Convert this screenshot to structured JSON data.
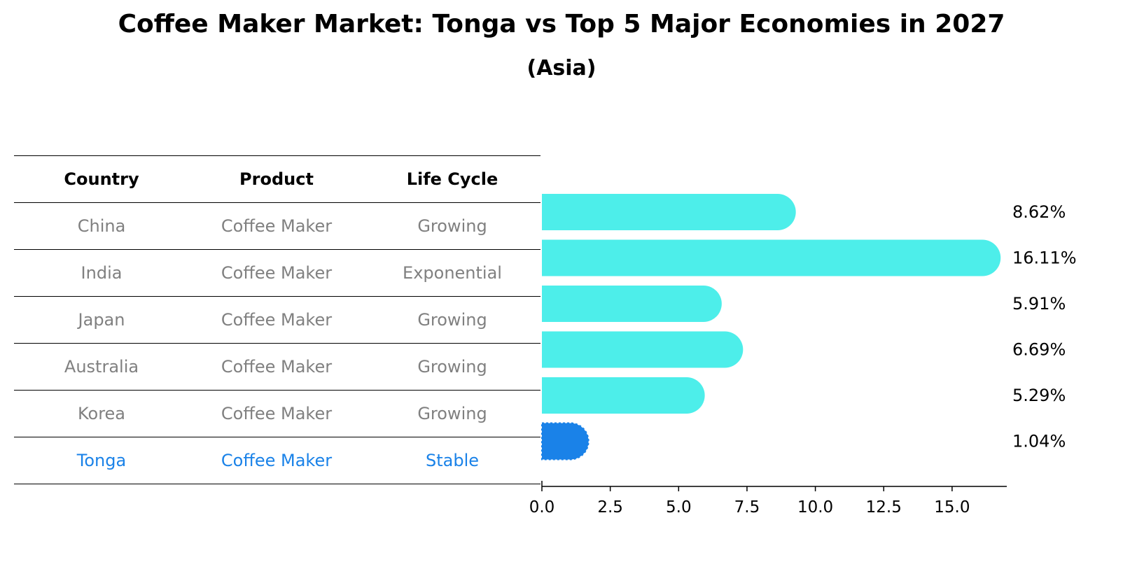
{
  "title": "Coffee Maker Market: Tonga vs Top 5 Major Economies in 2027",
  "subtitle": "(Asia)",
  "table": {
    "headers": [
      "Country",
      "Product",
      "Life Cycle"
    ],
    "rows": [
      [
        "China",
        "Coffee Maker",
        "Growing"
      ],
      [
        "India",
        "Coffee Maker",
        "Exponential"
      ],
      [
        "Japan",
        "Coffee Maker",
        "Growing"
      ],
      [
        "Australia",
        "Coffee Maker",
        "Growing"
      ],
      [
        "Korea",
        "Coffee Maker",
        "Growing"
      ],
      [
        "Tonga",
        "Coffee Maker",
        "Stable"
      ]
    ]
  },
  "colors": {
    "bar": "#4deeea",
    "highlight": "#1a82e8",
    "row_text": "#808080"
  },
  "chart_data": {
    "type": "bar",
    "orientation": "horizontal",
    "categories": [
      "China",
      "India",
      "Japan",
      "Australia",
      "Korea",
      "Tonga"
    ],
    "values": [
      8.62,
      16.11,
      5.91,
      6.69,
      5.29,
      1.04
    ],
    "value_labels": [
      "8.62%",
      "16.11%",
      "5.91%",
      "6.69%",
      "5.29%",
      "1.04%"
    ],
    "highlight": "Tonga",
    "xlim": [
      0,
      17
    ],
    "xticks": [
      0.0,
      2.5,
      5.0,
      7.5,
      10.0,
      12.5,
      15.0
    ],
    "xtick_labels": [
      "0.0",
      "2.5",
      "5.0",
      "7.5",
      "10.0",
      "12.5",
      "15.0"
    ],
    "xlabel": "",
    "ylabel": "",
    "title": "Coffee Maker Market: Tonga vs Top 5 Major Economies in 2027"
  }
}
